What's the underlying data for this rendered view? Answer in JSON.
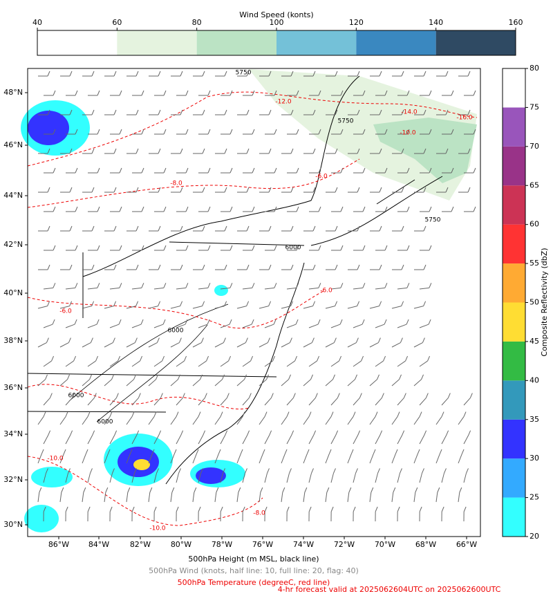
{
  "top_colorbar": {
    "title": "Wind Speed (konts)",
    "lim": [
      40,
      160
    ],
    "ticks": [
      40,
      60,
      80,
      100,
      120,
      140,
      160
    ],
    "colors": [
      "#ffffff",
      "#e5f3df",
      "#bbe3c4",
      "#74c1d8",
      "#3a88c0",
      "#2f4a63"
    ]
  },
  "right_colorbar": {
    "title": "Composite Reflectivity (dbZ)",
    "lim": [
      20,
      80
    ],
    "ticks": [
      20,
      25,
      30,
      35,
      40,
      45,
      50,
      55,
      60,
      65,
      70,
      75,
      80
    ],
    "colors": [
      "#33ffff",
      "#33aaff",
      "#3333ff",
      "#3399bb",
      "#33bb44",
      "#ffdd33",
      "#ffaa33",
      "#ff3333",
      "#cc3355",
      "#993388",
      "#9955bb",
      "#ffffff"
    ]
  },
  "map": {
    "lon_labels": [
      "86°W",
      "84°W",
      "82°W",
      "80°W",
      "78°W",
      "76°W",
      "74°W",
      "72°W",
      "70°W",
      "68°W",
      "66°W"
    ],
    "lat_labels": [
      "48°N",
      "46°N",
      "44°N",
      "42°N",
      "40°N",
      "38°N",
      "36°N",
      "34°N",
      "32°N",
      "30°N"
    ],
    "height_labels": [
      "5750",
      "5750",
      "5750",
      "6000",
      "6000",
      "6000",
      "6000"
    ],
    "temperature_labels": [
      "-12.0",
      "-14.0",
      "-16.0",
      "-10.0",
      "-8.0",
      "-6.0",
      "-6.0",
      "-6.0",
      "-10.0",
      "-10.0",
      "-8.0"
    ]
  },
  "captions": [
    "500hPa Height (m MSL, black line)",
    "500hPa Wind (knots, half line: 10, full line: 20, flag: 40)",
    "500hPa Temperature (degreeC, red line)",
    "4-hr forecast valid at 2025062604UTC on 2025062600UTC"
  ]
}
